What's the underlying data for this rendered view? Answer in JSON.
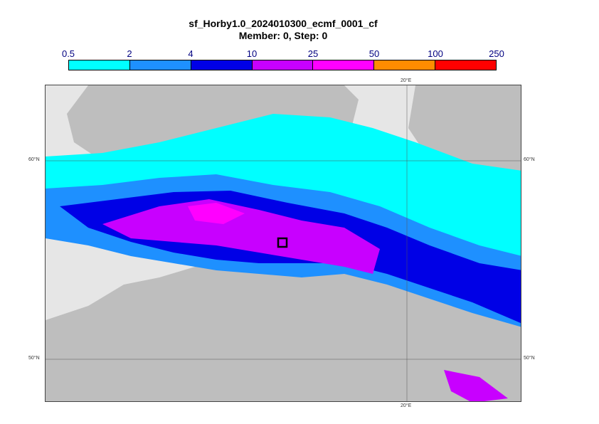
{
  "title": {
    "line1": "sf_Horby1.0_2024010300_ecmf_0001_cf",
    "line2": "Member: 0, Step: 0"
  },
  "legend": {
    "ticks": [
      "0.5",
      "2",
      "4",
      "10",
      "25",
      "50",
      "100",
      "250"
    ],
    "colors": [
      "#00ffff",
      "#1e90ff",
      "#0000e6",
      "#c800ff",
      "#ff00ff",
      "#ff8c00",
      "#ff0000"
    ]
  },
  "map": {
    "land_color": "#bebebe",
    "sea_color": "#e6e6e6",
    "lat_labels": [
      "60°N",
      "50°N"
    ],
    "lon_labels": [
      "20°E"
    ],
    "marker": "station-box"
  }
}
